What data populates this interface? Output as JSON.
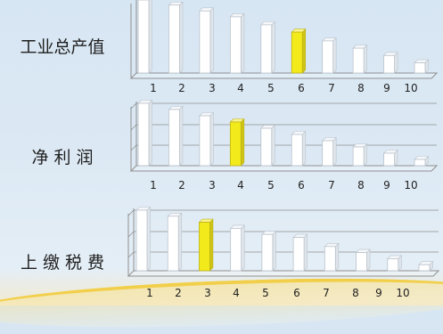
{
  "chart_data": [
    {
      "type": "bar",
      "title": "工业总产值",
      "categories": [
        "1",
        "2",
        "3",
        "4",
        "5",
        "6",
        "7",
        "8",
        "9",
        "10"
      ],
      "values": [
        100,
        93,
        85,
        77,
        66,
        56,
        44,
        34,
        24,
        14
      ],
      "highlight_index": 5
    },
    {
      "type": "bar",
      "title": "净 利 润",
      "categories": [
        "1",
        "2",
        "3",
        "4",
        "5",
        "6",
        "7",
        "8",
        "9",
        "10"
      ],
      "values": [
        100,
        90,
        80,
        70,
        60,
        50,
        40,
        30,
        20,
        10
      ],
      "highlight_index": 3
    },
    {
      "type": "bar",
      "title": "上 缴 税 费",
      "categories": [
        "1",
        "2",
        "3",
        "4",
        "5",
        "6",
        "7",
        "8",
        "9",
        "10"
      ],
      "values": [
        100,
        90,
        80,
        70,
        60,
        55,
        40,
        30,
        20,
        10
      ],
      "highlight_index": 2
    }
  ],
  "colors": {
    "bar": "#ffffff",
    "highlight": "#f3ea1c",
    "highlight_edge": "#bdb21a",
    "grid": "#8f8f8f",
    "tick_text": "#222222"
  }
}
